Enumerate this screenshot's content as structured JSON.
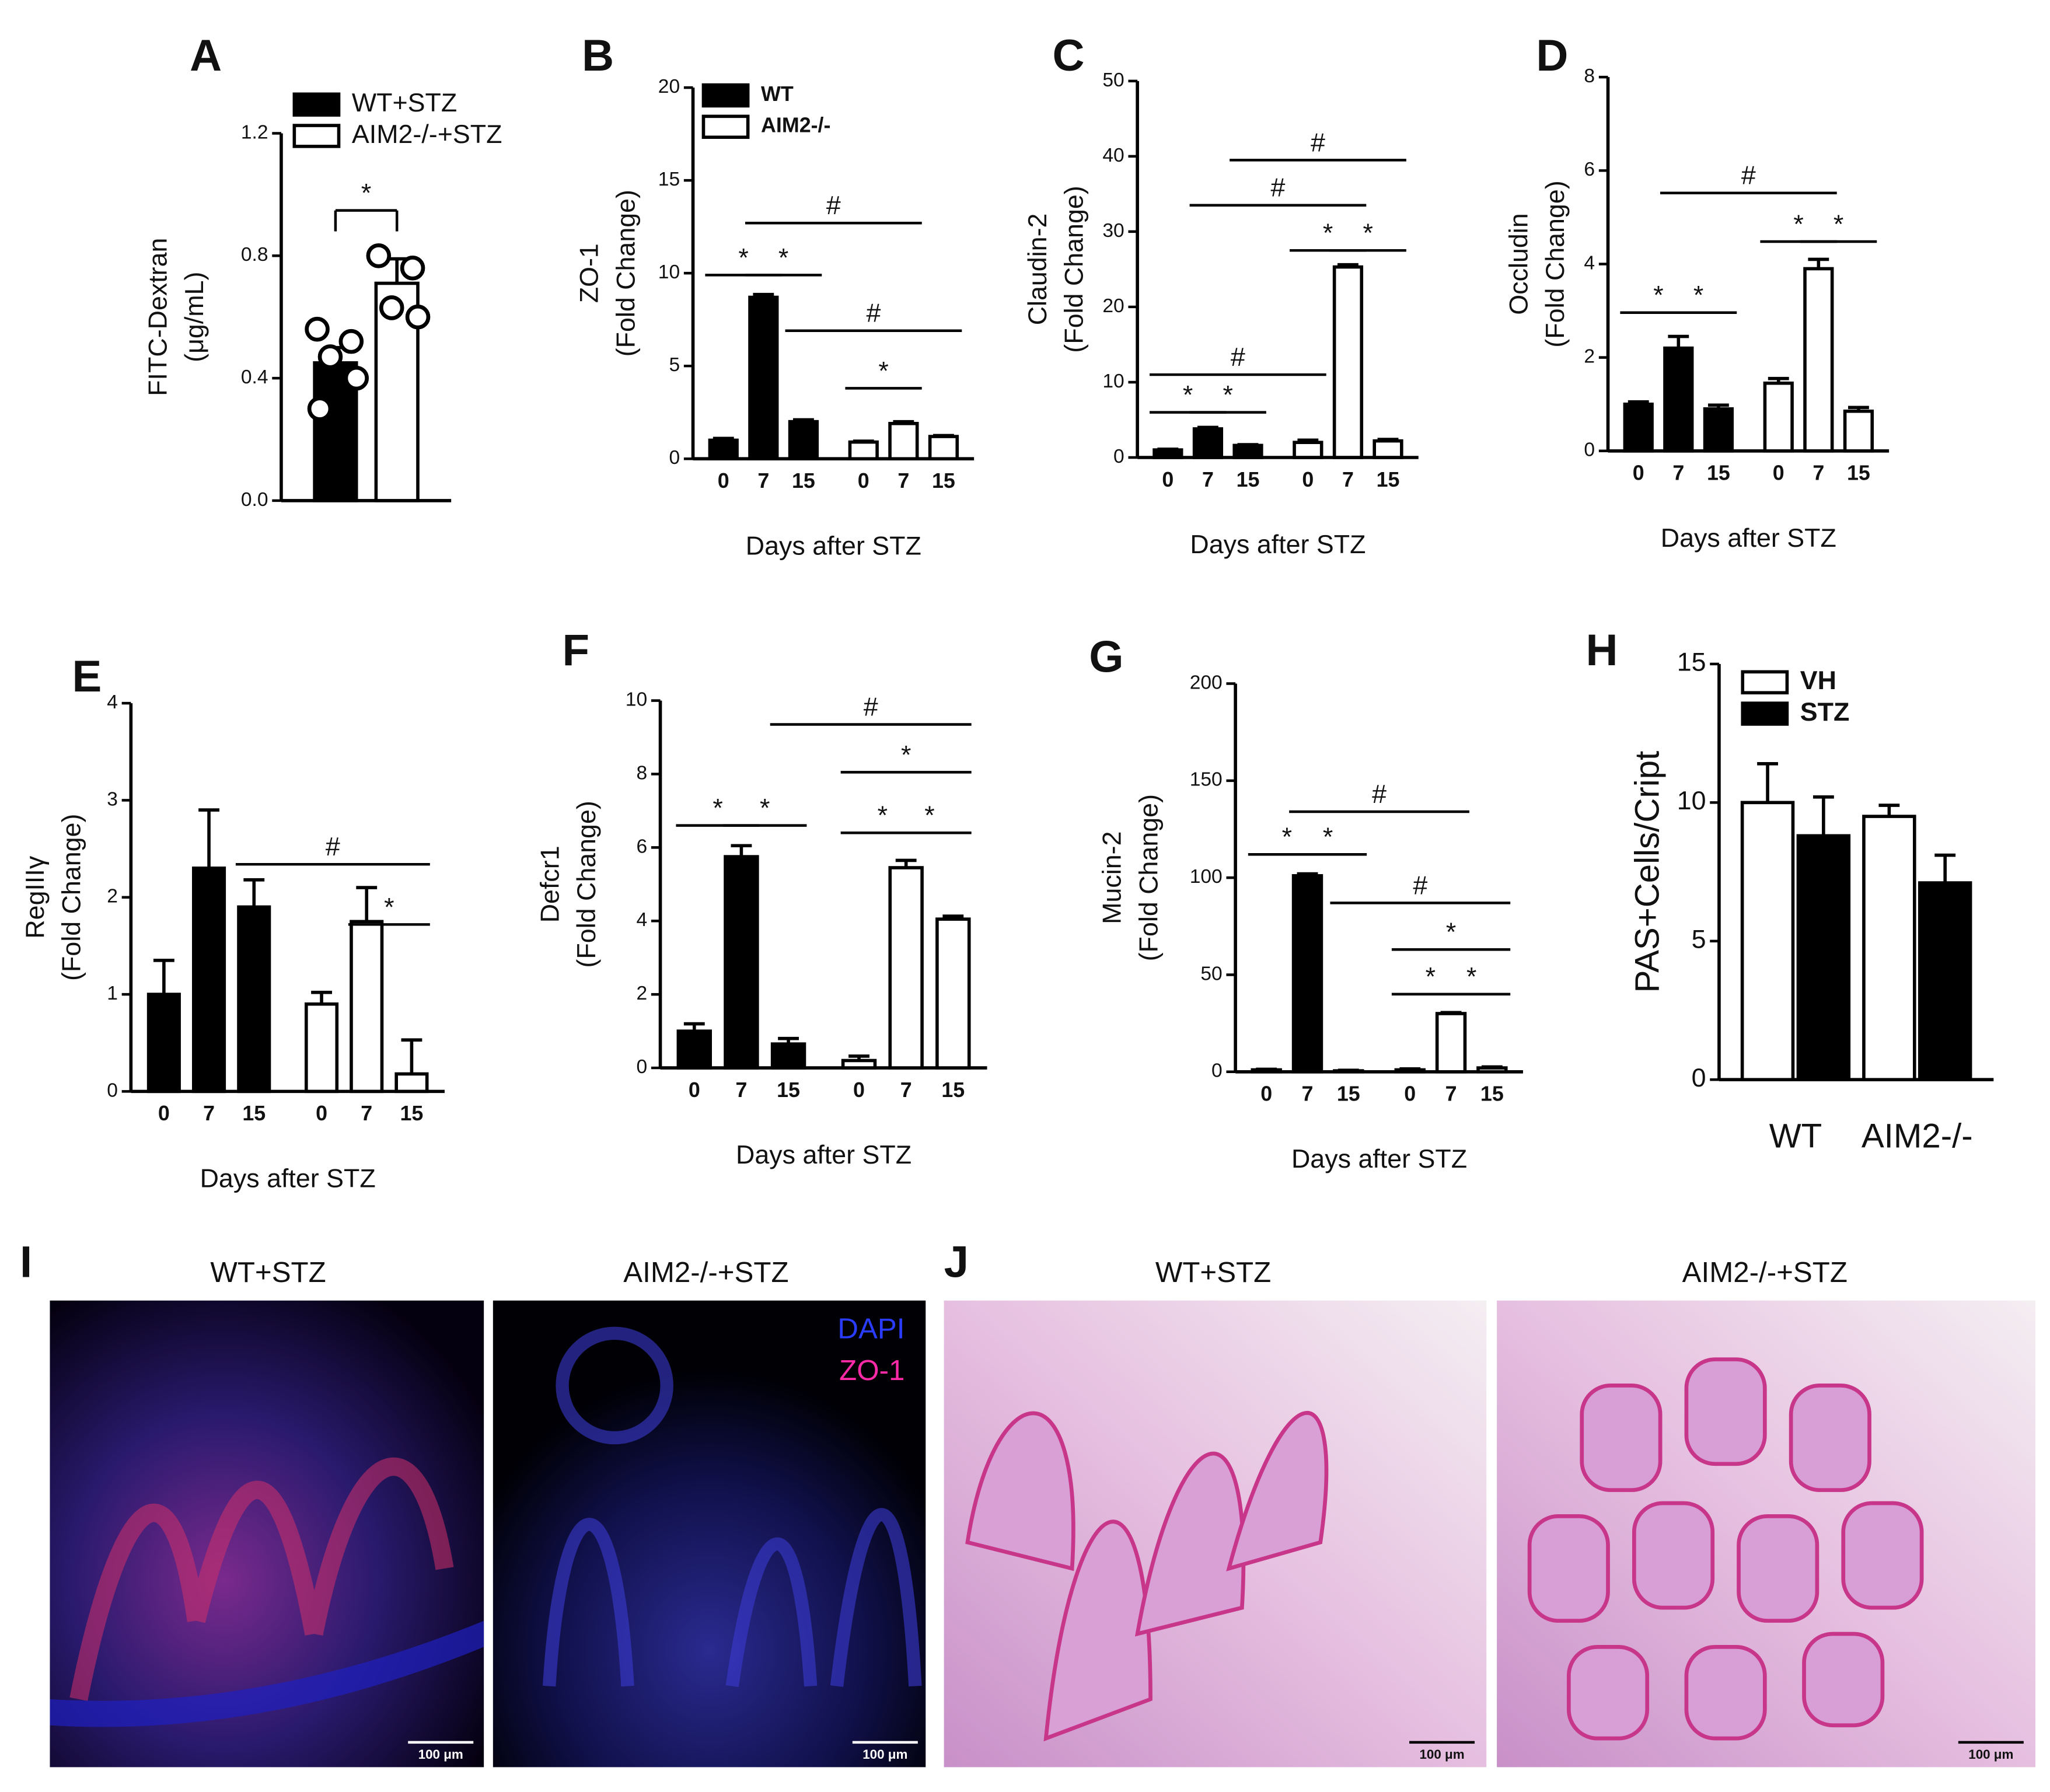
{
  "chart_data": [
    {
      "panel": "A",
      "type": "bar",
      "ylabel": [
        "FITC-Dextran",
        "(μg/mL)"
      ],
      "ylim": [
        0,
        1.2
      ],
      "yticks": [
        {
          "value": 0,
          "label": "0.0"
        },
        {
          "value": 0.4,
          "label": "0.4"
        },
        {
          "value": 0.8,
          "label": "0.8"
        },
        {
          "value": 1.2,
          "label": "1.2"
        }
      ],
      "series": [
        {
          "name": "WT+STZ",
          "color": "#000000",
          "values": [
            0.45,
            null
          ],
          "errors": [
            0.05,
            null
          ],
          "points": [
            0.56,
            0.52,
            0.47,
            0.4,
            0.3
          ]
        },
        {
          "name": "AIM2-/-+STZ",
          "color": "#ffffff",
          "values": [
            null,
            0.71
          ],
          "errors": [
            null,
            0.08
          ],
          "points": [
            0.8,
            0.76,
            0.63,
            0.6
          ]
        }
      ],
      "annotations": [
        "*"
      ]
    },
    {
      "panel": "B",
      "type": "bar",
      "ylabel": [
        "ZO-1",
        "(Fold Change)"
      ],
      "xlabel": "Days after STZ",
      "categories": [
        "0",
        "7",
        "15",
        "0",
        "7",
        "15"
      ],
      "ylim": [
        0,
        20
      ],
      "yticks": [
        0,
        5,
        10,
        15,
        20
      ],
      "series": [
        {
          "name": "WT",
          "color": "#000000",
          "values": [
            1.0,
            8.7,
            2.0,
            null,
            null,
            null
          ],
          "errors": [
            0.1,
            0.15,
            0.1,
            null,
            null,
            null
          ]
        },
        {
          "name": "AIM2-/-",
          "color": "#ffffff",
          "values": [
            null,
            null,
            null,
            0.9,
            1.9,
            1.2
          ],
          "errors": [
            null,
            null,
            null,
            0.05,
            0.1,
            0.05
          ]
        }
      ],
      "annotations": [
        "*",
        "*",
        "#",
        "#",
        "*"
      ]
    },
    {
      "panel": "C",
      "type": "bar",
      "ylabel": [
        "Claudin-2",
        "(Fold Change)"
      ],
      "xlabel": "Days after STZ",
      "categories": [
        "0",
        "7",
        "15",
        "0",
        "7",
        "15"
      ],
      "ylim": [
        0,
        50
      ],
      "yticks": [
        0,
        10,
        20,
        30,
        40,
        50
      ],
      "series": [
        {
          "color": "#000000",
          "values": [
            1.0,
            3.8,
            1.6,
            null,
            null,
            null
          ],
          "errors": [
            0.1,
            0.2,
            0.1,
            null,
            null,
            null
          ]
        },
        {
          "color": "#ffffff",
          "values": [
            null,
            null,
            null,
            2.0,
            25.3,
            2.2
          ],
          "errors": [
            null,
            null,
            null,
            0.3,
            0.3,
            0.2
          ]
        }
      ],
      "annotations": [
        "*",
        "*",
        "#",
        "#",
        "#",
        "*",
        "*"
      ]
    },
    {
      "panel": "D",
      "type": "bar",
      "ylabel": [
        "Occludin",
        "(Fold Change)"
      ],
      "xlabel": "Days after STZ",
      "categories": [
        "0",
        "7",
        "15",
        "0",
        "7",
        "15"
      ],
      "ylim": [
        0,
        8
      ],
      "yticks": [
        0,
        2,
        4,
        6,
        8
      ],
      "series": [
        {
          "color": "#000000",
          "values": [
            1.0,
            2.2,
            0.9,
            null,
            null,
            null
          ],
          "errors": [
            0.05,
            0.25,
            0.08,
            null,
            null,
            null
          ]
        },
        {
          "color": "#ffffff",
          "values": [
            null,
            null,
            null,
            1.45,
            3.9,
            0.85
          ],
          "errors": [
            null,
            null,
            null,
            0.1,
            0.2,
            0.08
          ]
        }
      ],
      "annotations": [
        "*",
        "*",
        "#",
        "*",
        "*"
      ]
    },
    {
      "panel": "E",
      "type": "bar",
      "ylabel": [
        "RegIIIγ",
        "(Fold Change)"
      ],
      "xlabel": "Days after STZ",
      "categories": [
        "0",
        "7",
        "15",
        "0",
        "7",
        "15"
      ],
      "ylim": [
        0,
        4
      ],
      "yticks": [
        0,
        1,
        2,
        3,
        4
      ],
      "series": [
        {
          "color": "#000000",
          "values": [
            1.0,
            2.3,
            1.9,
            null,
            null,
            null
          ],
          "errors": [
            0.35,
            0.6,
            0.28,
            null,
            null,
            null
          ]
        },
        {
          "color": "#ffffff",
          "values": [
            null,
            null,
            null,
            0.9,
            1.75,
            0.18
          ],
          "errors": [
            null,
            null,
            null,
            0.12,
            0.35,
            0.35
          ]
        }
      ],
      "annotations": [
        "#",
        "*"
      ]
    },
    {
      "panel": "F",
      "type": "bar",
      "ylabel": [
        "Defcr1",
        "(Fold Change)"
      ],
      "xlabel": "Days after STZ",
      "categories": [
        "0",
        "7",
        "15",
        "0",
        "7",
        "15"
      ],
      "ylim": [
        0,
        10
      ],
      "yticks": [
        0,
        2,
        4,
        6,
        8,
        10
      ],
      "series": [
        {
          "color": "#000000",
          "values": [
            1.0,
            5.75,
            0.65,
            null,
            null,
            null
          ],
          "errors": [
            0.2,
            0.3,
            0.15,
            null,
            null,
            null
          ]
        },
        {
          "color": "#ffffff",
          "values": [
            null,
            null,
            null,
            0.2,
            5.45,
            4.05
          ],
          "errors": [
            null,
            null,
            null,
            0.12,
            0.2,
            0.08
          ]
        }
      ],
      "annotations": [
        "*",
        "*",
        "#",
        "*",
        "*",
        "*"
      ]
    },
    {
      "panel": "G",
      "type": "bar",
      "ylabel": [
        "Mucin-2",
        "(Fold Change)"
      ],
      "xlabel": "Days after STZ",
      "categories": [
        "0",
        "7",
        "15",
        "0",
        "7",
        "15"
      ],
      "ylim": [
        0,
        200
      ],
      "yticks": [
        0,
        50,
        100,
        150,
        200
      ],
      "series": [
        {
          "color": "#000000",
          "values": [
            1,
            101,
            0.5,
            null,
            null,
            null
          ],
          "errors": [
            0.3,
            1,
            0.3,
            null,
            null,
            null
          ]
        },
        {
          "color": "#ffffff",
          "values": [
            null,
            null,
            null,
            1,
            30,
            2
          ],
          "errors": [
            null,
            null,
            null,
            0.5,
            0.5,
            0.5
          ]
        }
      ],
      "annotations": [
        "*",
        "*",
        "#",
        "#",
        "*",
        "*",
        "*"
      ]
    },
    {
      "panel": "H",
      "type": "bar",
      "ylabel": [
        "PAS+Cells/Cript"
      ],
      "categories": [
        "WT",
        "AIM2-/-"
      ],
      "ylim": [
        0,
        15
      ],
      "yticks": [
        0,
        5,
        10,
        15
      ],
      "series": [
        {
          "name": "VH",
          "color": "#ffffff",
          "values": [
            10.0,
            9.5
          ],
          "errors": [
            1.4,
            0.4
          ]
        },
        {
          "name": "STZ",
          "color": "#000000",
          "values": [
            8.8,
            7.1
          ],
          "errors": [
            1.4,
            1.0
          ]
        }
      ],
      "annotations": []
    }
  ],
  "images": [
    {
      "panel": "I",
      "captions": [
        "WT+STZ",
        "AIM2-/-+STZ"
      ],
      "channels": [
        "DAPI",
        "ZO-1"
      ],
      "scale_bars": [
        "100 μm",
        "100 μm"
      ]
    },
    {
      "panel": "J",
      "captions": [
        "WT+STZ",
        "AIM2-/-+STZ"
      ],
      "scale_bars": [
        "100 μm",
        "100 μm"
      ]
    }
  ]
}
